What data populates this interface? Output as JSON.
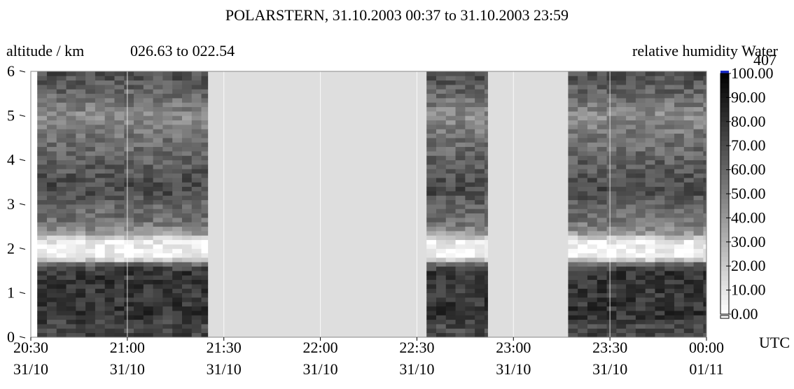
{
  "chart_data": {
    "type": "heatmap",
    "title": "POLARSTERN, 31.10.2003 00:37 to 31.10.2003 23:59",
    "ylabel": "altitude / km",
    "range_label": "026.63 to 022.54",
    "colorbar_label": "relative humidity Water",
    "colorbar_max_label": "407",
    "xunit": "UTC",
    "ylim": [
      0,
      6
    ],
    "yticks": [
      "0",
      "1",
      "2",
      "3",
      "4",
      "5",
      "6"
    ],
    "xlim": [
      "2003-10-31 20:30",
      "2003-11-01 00:00"
    ],
    "xticks": [
      {
        "time": "20:30",
        "date": "31/10"
      },
      {
        "time": "21:00",
        "date": "31/10"
      },
      {
        "time": "21:30",
        "date": "31/10"
      },
      {
        "time": "22:00",
        "date": "31/10"
      },
      {
        "time": "22:30",
        "date": "31/10"
      },
      {
        "time": "23:00",
        "date": "31/10"
      },
      {
        "time": "23:30",
        "date": "31/10"
      },
      {
        "time": "00:00",
        "date": "01/11"
      }
    ],
    "colorbar_ticks": [
      "0.00",
      "10.00",
      "20.00",
      "30.00",
      "40.00",
      "50.00",
      "60.00",
      "70.00",
      "80.00",
      "90.00",
      "100.00"
    ],
    "colorbar_range": [
      0,
      100
    ],
    "colorscale": {
      "low": "#ffffff",
      "high": "#000000",
      "over": "#1a2bc8",
      "missing": "#dedede"
    },
    "data_segments": [
      {
        "start": "20:32",
        "end": "21:25"
      },
      {
        "start": "22:33",
        "end": "22:52"
      },
      {
        "start": "23:17",
        "end": "00:00"
      }
    ],
    "profile": {
      "altitude_km": [
        0,
        0.2,
        0.5,
        1.0,
        1.5,
        1.65,
        1.75,
        1.85,
        2.0,
        2.2,
        2.35,
        2.6,
        3.0,
        3.3,
        3.8,
        4.5,
        5.0,
        5.5,
        6.0
      ],
      "relative_humidity_pct": [
        75,
        70,
        80,
        78,
        80,
        60,
        20,
        5,
        2,
        10,
        40,
        55,
        60,
        72,
        65,
        55,
        45,
        60,
        70
      ]
    }
  }
}
